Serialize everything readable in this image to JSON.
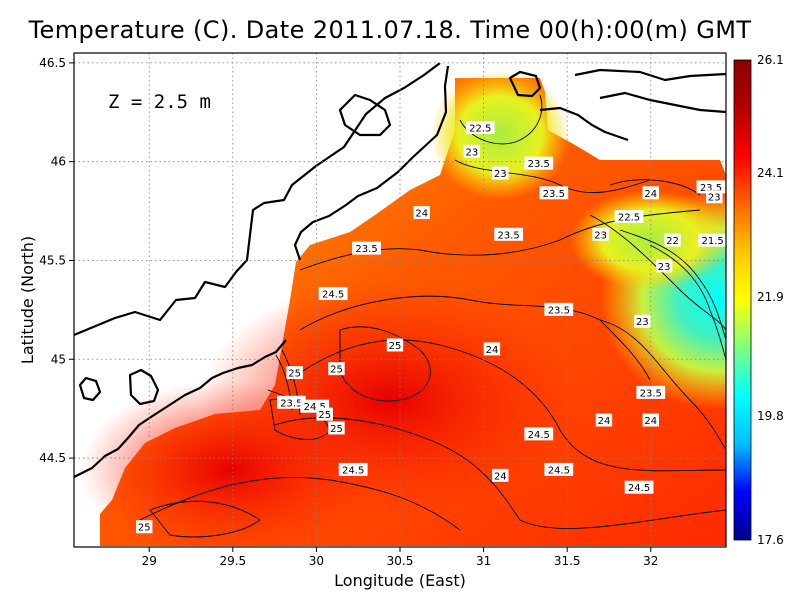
{
  "chart_data": {
    "type": "heatmap",
    "title": "Temperature (C). Date 2011.07.18. Time 00(h):00(m) GMT",
    "xlabel": "Longitude (East)",
    "ylabel": "Latitude (North)",
    "depth_label": "Z = 2.5 m",
    "xlim": [
      28.55,
      32.45
    ],
    "ylim": [
      44.05,
      46.55
    ],
    "xticks": [
      29,
      29.5,
      30,
      30.5,
      31,
      31.5,
      32
    ],
    "xtick_labels": [
      "29",
      "29.5",
      "30",
      "30.5",
      "31",
      "31.5",
      "32"
    ],
    "yticks": [
      44.5,
      45,
      45.5,
      46,
      46.5
    ],
    "ytick_labels": [
      "44.5",
      "45",
      "45.5",
      "46",
      "46.5"
    ],
    "grid": true,
    "colorbar": {
      "min": 17.6,
      "max": 26.1,
      "labels": [
        "26.1",
        "24.1",
        "21.9",
        "19.8",
        "17.6"
      ],
      "label_values": [
        26.1,
        24.1,
        21.9,
        19.8,
        17.6
      ],
      "colors": [
        "#00008b",
        "#0000ff",
        "#00bfff",
        "#00ffff",
        "#7fff7f",
        "#ffff00",
        "#ffc800",
        "#ff6400",
        "#ff0000",
        "#b40000",
        "#8b0000"
      ]
    },
    "contour_labels": [
      {
        "text": "22.5",
        "lon": 30.98,
        "lat": 46.17
      },
      {
        "text": "23",
        "lon": 30.93,
        "lat": 46.05
      },
      {
        "text": "23",
        "lon": 31.1,
        "lat": 45.94
      },
      {
        "text": "23.5",
        "lon": 31.33,
        "lat": 45.99
      },
      {
        "text": "23.5",
        "lon": 31.42,
        "lat": 45.84
      },
      {
        "text": "24",
        "lon": 30.63,
        "lat": 45.74
      },
      {
        "text": "23.5",
        "lon": 30.3,
        "lat": 45.56
      },
      {
        "text": "23.5",
        "lon": 31.15,
        "lat": 45.63
      },
      {
        "text": "24",
        "lon": 32.0,
        "lat": 45.84
      },
      {
        "text": "22.5",
        "lon": 31.87,
        "lat": 45.72
      },
      {
        "text": "23.5",
        "lon": 32.36,
        "lat": 45.87
      },
      {
        "text": "23",
        "lon": 32.38,
        "lat": 45.82
      },
      {
        "text": "23",
        "lon": 31.7,
        "lat": 45.63
      },
      {
        "text": "22",
        "lon": 32.13,
        "lat": 45.6
      },
      {
        "text": "21.5",
        "lon": 32.37,
        "lat": 45.6
      },
      {
        "text": "23",
        "lon": 32.08,
        "lat": 45.47
      },
      {
        "text": "24.5",
        "lon": 30.1,
        "lat": 45.33
      },
      {
        "text": "23.5",
        "lon": 31.45,
        "lat": 45.25
      },
      {
        "text": "23",
        "lon": 31.95,
        "lat": 45.19
      },
      {
        "text": "25",
        "lon": 30.47,
        "lat": 45.07
      },
      {
        "text": "24",
        "lon": 31.05,
        "lat": 45.05
      },
      {
        "text": "25",
        "lon": 29.87,
        "lat": 44.93
      },
      {
        "text": "25",
        "lon": 30.12,
        "lat": 44.95
      },
      {
        "text": "23.5",
        "lon": 29.85,
        "lat": 44.78
      },
      {
        "text": "24.5",
        "lon": 29.99,
        "lat": 44.76
      },
      {
        "text": "25",
        "lon": 30.05,
        "lat": 44.72
      },
      {
        "text": "25",
        "lon": 30.12,
        "lat": 44.65
      },
      {
        "text": "24.5",
        "lon": 31.33,
        "lat": 44.62
      },
      {
        "text": "23.5",
        "lon": 32.0,
        "lat": 44.83
      },
      {
        "text": "24",
        "lon": 31.72,
        "lat": 44.69
      },
      {
        "text": "24",
        "lon": 32.0,
        "lat": 44.69
      },
      {
        "text": "24.5",
        "lon": 30.22,
        "lat": 44.44
      },
      {
        "text": "24.5",
        "lon": 31.45,
        "lat": 44.44
      },
      {
        "text": "24",
        "lon": 31.1,
        "lat": 44.41
      },
      {
        "text": "24.5",
        "lon": 31.93,
        "lat": 44.35
      },
      {
        "text": "25",
        "lon": 28.97,
        "lat": 44.15
      }
    ]
  }
}
